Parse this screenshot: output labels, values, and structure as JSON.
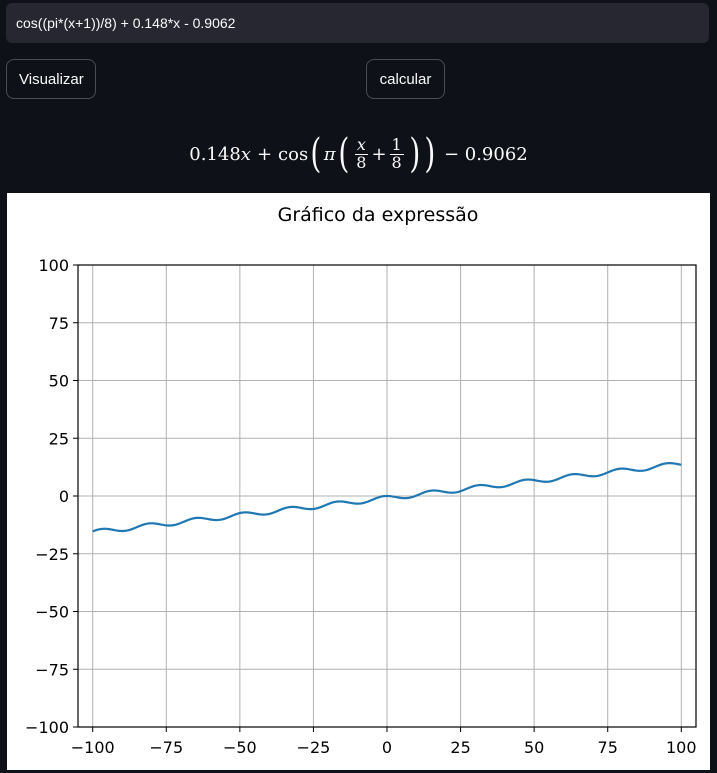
{
  "input": {
    "value": "cos((pi*(x+1))/8) + 0.148*x - 0.9062"
  },
  "buttons": {
    "visualize_label": "Visualizar",
    "calculate_label": "calcular"
  },
  "latex": {
    "coef": "0.148",
    "var_x": "x",
    "plus": "+",
    "cos": "cos",
    "pi": "π",
    "frac1_num": "x",
    "frac1_den": "8",
    "frac2_num": "1",
    "frac2_den": "8",
    "minus_const": "− 0.9062"
  },
  "colors": {
    "background": "#0e1117",
    "input_bg": "#262730",
    "line": "#1f77b4"
  },
  "chart_data": {
    "type": "line",
    "title": "Gráfico da expressão",
    "xlabel": "",
    "ylabel": "",
    "xlim": [
      -105,
      105
    ],
    "ylim": [
      -100,
      100
    ],
    "grid": true,
    "x_ticks": [
      -100,
      -75,
      -50,
      -25,
      0,
      25,
      50,
      75,
      100
    ],
    "y_ticks": [
      -100,
      -75,
      -50,
      -25,
      0,
      25,
      50,
      75,
      100
    ],
    "x_tick_labels": [
      "−100",
      "−75",
      "−50",
      "−25",
      "0",
      "25",
      "50",
      "75",
      "100"
    ],
    "y_tick_labels": [
      "−100",
      "−75",
      "−50",
      "−25",
      "0",
      "25",
      "50",
      "75",
      "100"
    ],
    "series": [
      {
        "expression": "cos((pi*(x+1))/8) + 0.148*x - 0.9062",
        "x_range": [
          -100,
          100
        ],
        "color": "#1f77b4"
      }
    ]
  }
}
